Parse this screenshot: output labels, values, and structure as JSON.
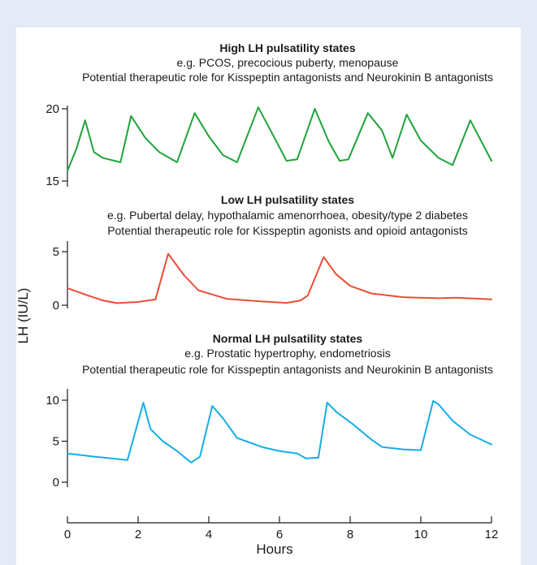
{
  "colors": {
    "background": "#e4ebf6",
    "panel": "#ffffff",
    "high": "#1fa43a",
    "low": "#e94e35",
    "normal": "#16aee4",
    "text": "#1a1a1a"
  },
  "chart_data": {
    "type": "line",
    "xlabel": "Hours",
    "ylabel": "LH (IU/L)",
    "xlim": [
      0,
      12
    ],
    "x_ticks": [
      "0",
      "2",
      "4",
      "6",
      "8",
      "10",
      "12"
    ],
    "grid": false,
    "panels": [
      {
        "id": "high",
        "title": "High LH pulsatility states",
        "subtitle": "e.g. PCOS, precocious puberty, menopause",
        "note": "Potential therapeutic role for Kisspeptin antagonists and Neurokinin B antagonists",
        "ylim": [
          15,
          20.5
        ],
        "y_ticks": [
          "20",
          "15"
        ],
        "y_tick_values": [
          20,
          15
        ],
        "color": "#1fa43a",
        "points": [
          [
            0,
            15.7
          ],
          [
            0.25,
            17.2
          ],
          [
            0.5,
            19.2
          ],
          [
            0.75,
            17.0
          ],
          [
            1.0,
            16.6
          ],
          [
            1.5,
            16.3
          ],
          [
            1.8,
            19.5
          ],
          [
            2.2,
            18.0
          ],
          [
            2.6,
            17.0
          ],
          [
            3.1,
            16.3
          ],
          [
            3.6,
            19.7
          ],
          [
            4.0,
            18.1
          ],
          [
            4.4,
            16.8
          ],
          [
            4.8,
            16.3
          ],
          [
            5.4,
            20.1
          ],
          [
            5.9,
            17.8
          ],
          [
            6.2,
            16.4
          ],
          [
            6.5,
            16.5
          ],
          [
            7.0,
            20.0
          ],
          [
            7.4,
            17.7
          ],
          [
            7.7,
            16.4
          ],
          [
            7.95,
            16.5
          ],
          [
            8.5,
            19.7
          ],
          [
            8.9,
            18.5
          ],
          [
            9.2,
            16.6
          ],
          [
            9.6,
            19.6
          ],
          [
            10.0,
            17.8
          ],
          [
            10.5,
            16.6
          ],
          [
            10.9,
            16.1
          ],
          [
            11.4,
            19.2
          ],
          [
            12.0,
            16.4
          ]
        ]
      },
      {
        "id": "low",
        "title": "Low LH pulsatility states",
        "subtitle": "e.g. Pubertal delay, hypothalamic amenorrhoea, obesity/type 2 diabetes",
        "note": "Potential therapeutic role for Kisspeptin agonists and opioid antagonists",
        "ylim": [
          0,
          5.2
        ],
        "y_ticks": [
          "5",
          "0"
        ],
        "y_tick_values": [
          5,
          0
        ],
        "color": "#e94e35",
        "points": [
          [
            0,
            1.6
          ],
          [
            0.5,
            1.0
          ],
          [
            1.0,
            0.45
          ],
          [
            1.4,
            0.2
          ],
          [
            2.0,
            0.3
          ],
          [
            2.5,
            0.55
          ],
          [
            2.5,
            0.65
          ],
          [
            2.85,
            4.8
          ],
          [
            3.3,
            2.8
          ],
          [
            3.7,
            1.4
          ],
          [
            4.5,
            0.6
          ],
          [
            5.5,
            0.35
          ],
          [
            6.2,
            0.22
          ],
          [
            6.6,
            0.45
          ],
          [
            6.8,
            0.9
          ],
          [
            7.25,
            4.5
          ],
          [
            7.6,
            2.9
          ],
          [
            8.0,
            1.8
          ],
          [
            8.6,
            1.1
          ],
          [
            9.5,
            0.75
          ],
          [
            10.5,
            0.65
          ],
          [
            11.0,
            0.7
          ],
          [
            12.0,
            0.55
          ]
        ]
      },
      {
        "id": "normal",
        "title": "Normal LH pulsatility states",
        "subtitle": "e.g. Prostatic hypertrophy, endometriosis",
        "note": "Potential therapeutic role for Kisspeptin antagonists and Neurokinin B antagonists",
        "ylim": [
          0,
          10.5
        ],
        "y_ticks": [
          "10",
          "5",
          "0"
        ],
        "y_tick_values": [
          10,
          5,
          0
        ],
        "color": "#16aee4",
        "points": [
          [
            0,
            3.5
          ],
          [
            0.8,
            3.1
          ],
          [
            1.7,
            2.7
          ],
          [
            2.15,
            9.7
          ],
          [
            2.35,
            6.5
          ],
          [
            2.7,
            5.0
          ],
          [
            3.1,
            3.8
          ],
          [
            3.5,
            2.4
          ],
          [
            3.75,
            3.1
          ],
          [
            4.1,
            9.3
          ],
          [
            4.4,
            7.8
          ],
          [
            4.8,
            5.4
          ],
          [
            5.5,
            4.3
          ],
          [
            6.0,
            3.8
          ],
          [
            6.5,
            3.5
          ],
          [
            6.75,
            2.9
          ],
          [
            7.1,
            3.0
          ],
          [
            7.35,
            9.7
          ],
          [
            7.6,
            8.6
          ],
          [
            8.1,
            7.0
          ],
          [
            8.6,
            5.2
          ],
          [
            8.9,
            4.3
          ],
          [
            9.5,
            4.0
          ],
          [
            10.0,
            3.9
          ],
          [
            10.35,
            9.9
          ],
          [
            10.5,
            9.5
          ],
          [
            10.9,
            7.5
          ],
          [
            11.4,
            5.8
          ],
          [
            12.0,
            4.6
          ]
        ]
      }
    ]
  }
}
